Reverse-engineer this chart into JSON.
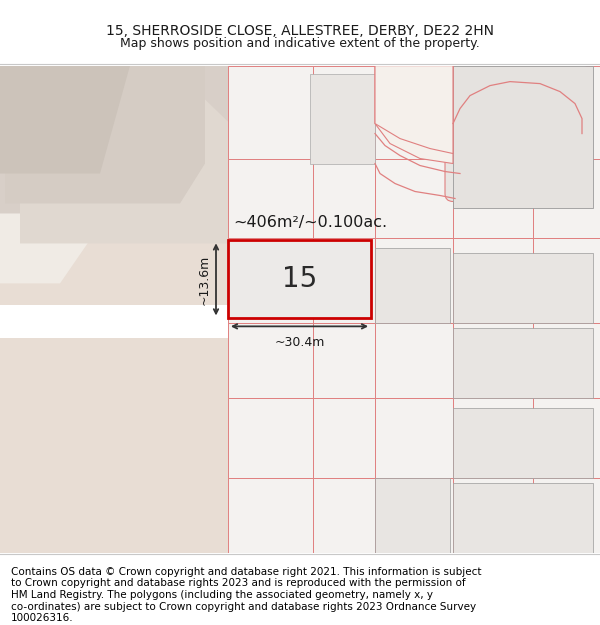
{
  "title_line1": "15, SHERROSIDE CLOSE, ALLESTREE, DERBY, DE22 2HN",
  "title_line2": "Map shows position and indicative extent of the property.",
  "footer_text": "Contains OS data © Crown copyright and database right 2021. This information is subject to Crown copyright and database rights 2023 and is reproduced with the permission of HM Land Registry. The polygons (including the associated geometry, namely x, y co-ordinates) are subject to Crown copyright and database rights 2023 Ordnance Survey 100026316.",
  "map_bg": "#f5f0eb",
  "left_bg": "#e8ddd4",
  "right_bg": "#f7f5f3",
  "road_white": "#ffffff",
  "building_gray": "#d8cfc8",
  "plot_fill": "#eeeceb",
  "plot_gray_fill": "#e8e6e4",
  "highlight_fill": "#eceae8",
  "highlight_border": "#cc0000",
  "neighbor_border": "#e08080",
  "dim_line_color": "#333333",
  "text_color": "#1a1a1a",
  "area_text": "~406m²/~0.100ac.",
  "width_text": "~30.4m",
  "height_text": "~13.6m",
  "number_text": "15",
  "title_fontsize": 10,
  "subtitle_fontsize": 9,
  "footer_fontsize": 7.5
}
